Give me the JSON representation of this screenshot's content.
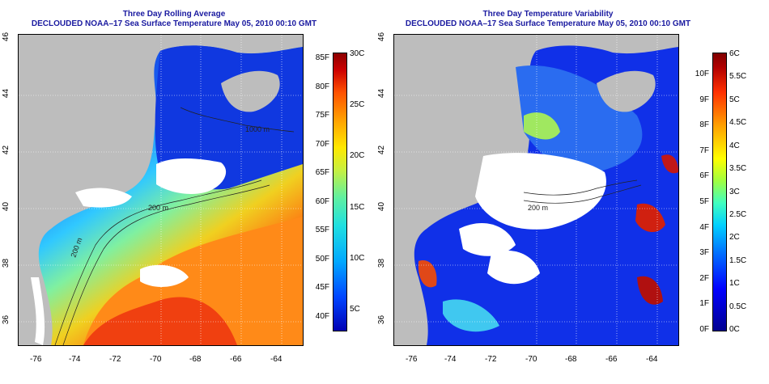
{
  "left_panel": {
    "title_line1": "Three Day Rolling Average",
    "title_line2": "DECLOUDED NOAA–17 Sea Surface Temperature May 05, 2010 00:10 GMT",
    "x_ticks": [
      "-76",
      "-74",
      "-72",
      "-70",
      "-68",
      "-66",
      "-64"
    ],
    "y_ticks": [
      "46",
      "44",
      "42",
      "40",
      "38",
      "36"
    ],
    "contour_labels": [
      "1000 m",
      "200 m",
      "200 m"
    ],
    "colorbar": {
      "fahrenheit": [
        "85F",
        "80F",
        "75F",
        "70F",
        "65F",
        "60F",
        "55F",
        "50F",
        "45F",
        "40F"
      ],
      "celsius": [
        "30C",
        "25C",
        "20C",
        "15C",
        "10C",
        "5C"
      ]
    }
  },
  "right_panel": {
    "title_line1": "Three Day Temperature Variability",
    "title_line2": "DECLOUDED NOAA–17 Sea Surface Temperature May 05, 2010 00:10 GMT",
    "x_ticks": [
      "-76",
      "-74",
      "-72",
      "-70",
      "-68",
      "-66",
      "-64"
    ],
    "y_ticks": [
      "46",
      "44",
      "42",
      "40",
      "38",
      "36"
    ],
    "contour_labels": [
      "200 m"
    ],
    "colorbar": {
      "fahrenheit": [
        "10F",
        "9F",
        "8F",
        "7F",
        "6F",
        "5F",
        "4F",
        "3F",
        "2F",
        "1F",
        "0F"
      ],
      "celsius": [
        "6C",
        "5.5C",
        "5C",
        "4.5C",
        "4C",
        "3.5C",
        "3C",
        "2.5C",
        "2C",
        "1.5C",
        "1C",
        "0.5C",
        "0C"
      ]
    }
  },
  "colors": {
    "land": "#bdbdbd",
    "title": "#1a1aa0",
    "cloud": "#ffffff"
  }
}
